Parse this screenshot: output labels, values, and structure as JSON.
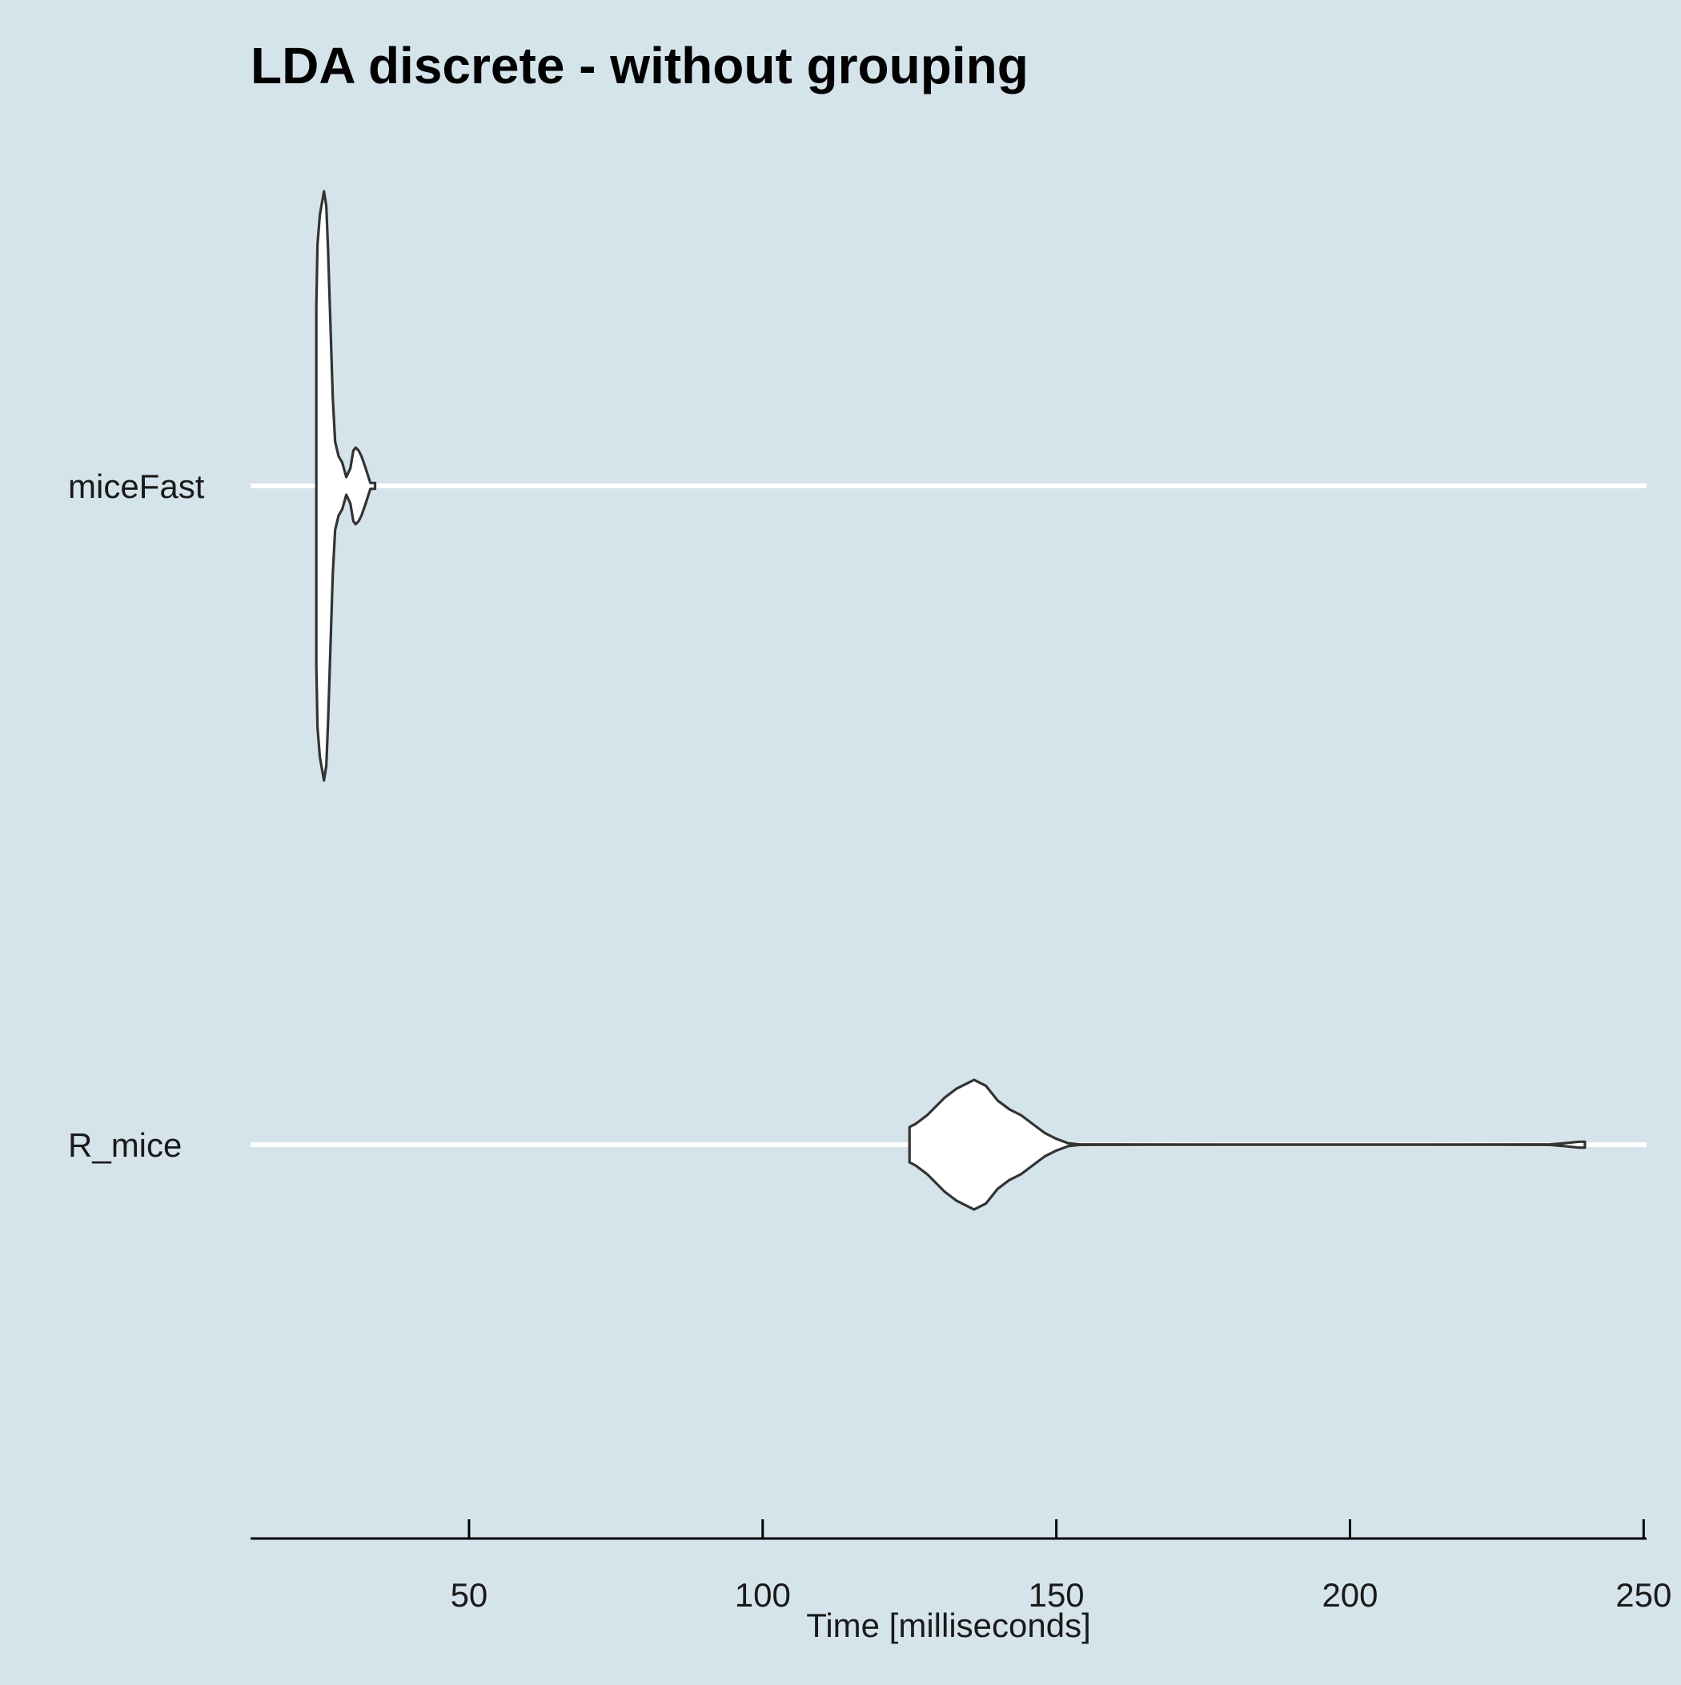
{
  "chart_data": {
    "type": "violin",
    "title": "LDA discrete - without grouping",
    "xlabel": "Time [milliseconds]",
    "ylabel": "",
    "orientation": "horizontal",
    "xlim": [
      12.8,
      250.5
    ],
    "xticks": [
      50,
      100,
      150,
      200,
      250
    ],
    "xtick_labels": [
      "50",
      "100",
      "150",
      "200",
      "250"
    ],
    "grid": "horizontal major lines only",
    "legend": "none",
    "colors": {
      "background": "#d5e4eb",
      "gridline": "#ffffff",
      "violin_fill": "#ffffff",
      "violin_stroke": "#333333",
      "axis": "#000000"
    },
    "categories": [
      "miceFast",
      "R_mice"
    ],
    "series": [
      {
        "category": "miceFast",
        "min": 24,
        "max": 34,
        "density_profile": [
          [
            24.0,
            0.61
          ],
          [
            24.2,
            0.82
          ],
          [
            24.6,
            0.92
          ],
          [
            25.3,
            1.0
          ],
          [
            25.7,
            0.95
          ],
          [
            26.0,
            0.8
          ],
          [
            26.4,
            0.55
          ],
          [
            26.8,
            0.3
          ],
          [
            27.2,
            0.15
          ],
          [
            27.8,
            0.1
          ],
          [
            28.4,
            0.08
          ],
          [
            29.1,
            0.03
          ],
          [
            29.8,
            0.06
          ],
          [
            30.3,
            0.12
          ],
          [
            30.7,
            0.13
          ],
          [
            31.2,
            0.12
          ],
          [
            31.7,
            0.1
          ],
          [
            32.4,
            0.06
          ],
          [
            33.2,
            0.01
          ],
          [
            34.0,
            0.01
          ]
        ]
      },
      {
        "category": "R_mice",
        "min": 125,
        "max": 240,
        "density_profile": [
          [
            125.0,
            0.06
          ],
          [
            126.0,
            0.07
          ],
          [
            128.0,
            0.1
          ],
          [
            131.0,
            0.16
          ],
          [
            133.0,
            0.19
          ],
          [
            135.0,
            0.21
          ],
          [
            136.0,
            0.22
          ],
          [
            138.0,
            0.2
          ],
          [
            140.0,
            0.15
          ],
          [
            142.0,
            0.12
          ],
          [
            144.0,
            0.1
          ],
          [
            146.0,
            0.07
          ],
          [
            148.0,
            0.04
          ],
          [
            150.0,
            0.02
          ],
          [
            152.0,
            0.005
          ],
          [
            154.0,
            0.001
          ],
          [
            180.0,
            0.0004
          ],
          [
            210.0,
            0.0004
          ],
          [
            234.0,
            0.001
          ],
          [
            236.0,
            0.004
          ],
          [
            239.0,
            0.01
          ],
          [
            240.0,
            0.01
          ]
        ]
      }
    ]
  }
}
